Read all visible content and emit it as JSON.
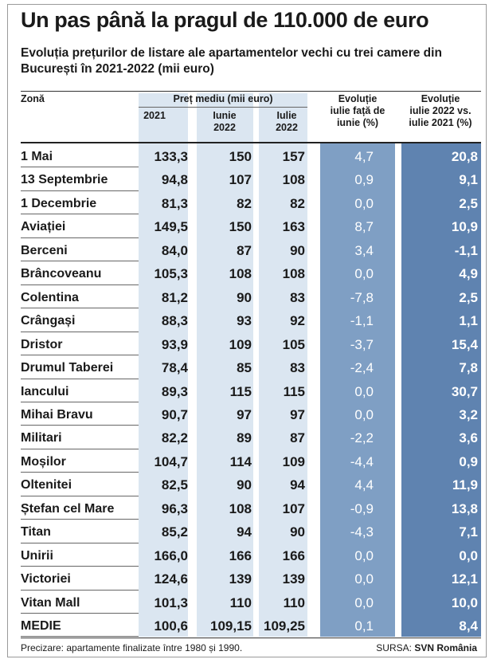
{
  "title": "Un pas până la pragul de 110.000 de euro",
  "subtitle": "Evoluția prețurilor de listare ale apartamentelor vechi cu trei camere din București în 2021-2022 (mii euro)",
  "headers": {
    "zone": "Zonă",
    "price_group": "Preț mediu (mii euro)",
    "col_2021": "2021",
    "col_iunie": [
      "Iunie",
      "2022"
    ],
    "col_iulie": [
      "Iulie",
      "2022"
    ],
    "col_evo_month": [
      "Evoluție",
      "iulie față de",
      "iunie (%)"
    ],
    "col_evo_year": [
      "Evoluție",
      "iulie 2022 vs.",
      "iulie 2021 (%)"
    ]
  },
  "colors": {
    "light_blue": "#dbe6f1",
    "mid_blue": "#7f9fc4",
    "dark_blue": "#5f83b0"
  },
  "chart_data": {
    "type": "table",
    "columns": [
      "Zonă",
      "2021",
      "Iunie 2022",
      "Iulie 2022",
      "Evoluție iulie față de iunie (%)",
      "Evoluție iulie 2022 vs. iulie 2021 (%)"
    ],
    "rows": [
      [
        "1 Mai",
        "133,3",
        "150",
        "157",
        "4,7",
        "20,8"
      ],
      [
        "13 Septembrie",
        "94,8",
        "107",
        "108",
        "0,9",
        "9,1"
      ],
      [
        "1 Decembrie",
        "81,3",
        "82",
        "82",
        "0,0",
        "2,5"
      ],
      [
        "Aviației",
        "149,5",
        "150",
        "163",
        "8,7",
        "10,9"
      ],
      [
        "Berceni",
        "84,0",
        "87",
        "90",
        "3,4",
        "-1,1"
      ],
      [
        "Brâncoveanu",
        "105,3",
        "108",
        "108",
        "0,0",
        "4,9"
      ],
      [
        "Colentina",
        "81,2",
        "90",
        "83",
        "-7,8",
        "2,5"
      ],
      [
        "Crângași",
        "88,3",
        "93",
        "92",
        "-1,1",
        "1,1"
      ],
      [
        "Dristor",
        "93,9",
        "109",
        "105",
        "-3,7",
        "15,4"
      ],
      [
        "Drumul Taberei",
        "78,4",
        "85",
        "83",
        "-2,4",
        "7,8"
      ],
      [
        "Iancului",
        "89,3",
        "115",
        "115",
        "0,0",
        "30,7"
      ],
      [
        "Mihai Bravu",
        "90,7",
        "97",
        "97",
        "0,0",
        "3,2"
      ],
      [
        "Militari",
        "82,2",
        "89",
        "87",
        "-2,2",
        "3,6"
      ],
      [
        "Moșilor",
        "104,7",
        "114",
        "109",
        "-4,4",
        "0,9"
      ],
      [
        "Oltenitei",
        "82,5",
        "90",
        "94",
        "4,4",
        "11,9"
      ],
      [
        "Ștefan cel Mare",
        "96,3",
        "108",
        "107",
        "-0,9",
        "13,8"
      ],
      [
        "Titan",
        "85,2",
        "94",
        "90",
        "-4,3",
        "7,1"
      ],
      [
        "Unirii",
        "166,0",
        "166",
        "166",
        "0,0",
        "0,0"
      ],
      [
        "Victoriei",
        "124,6",
        "139",
        "139",
        "0,0",
        "12,1"
      ],
      [
        "Vitan Mall",
        "101,3",
        "110",
        "110",
        "0,0",
        "10,0"
      ],
      [
        "MEDIE",
        "100,6",
        "109,15",
        "109,25",
        "0,1",
        "8,4"
      ]
    ]
  },
  "footer": {
    "note": "Precizare: apartamente finalizate între 1980 și 1990.",
    "source_label": "SURSA:",
    "source_name": "SVN România"
  }
}
